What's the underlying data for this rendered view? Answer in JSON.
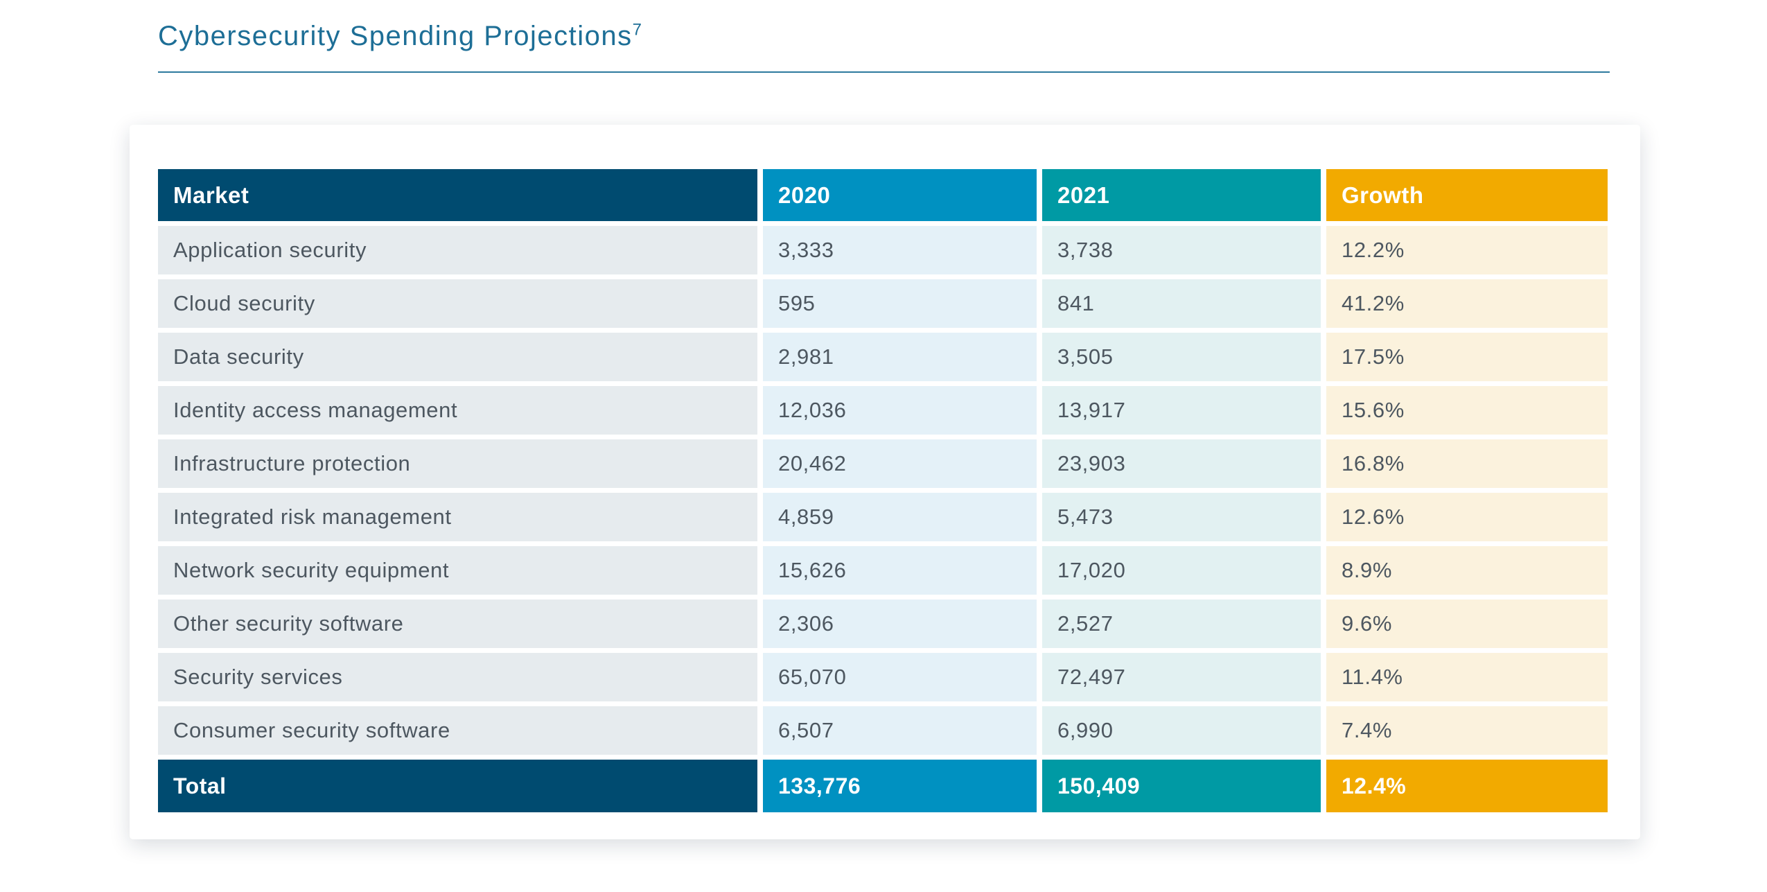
{
  "title": {
    "text": "Cybersecurity Spending Projections",
    "footnote_marker": "7"
  },
  "colors": {
    "title_text": "#1d6e96",
    "title_rule": "#2d7a9e",
    "header_market": "#004b70",
    "header_2020": "#0091c1",
    "header_2021": "#009aa4",
    "header_growth": "#f2aa00",
    "cell_market": "#e6ebee",
    "cell_2020": "#e4f1f8",
    "cell_2021": "#e2f1f2",
    "cell_growth": "#fbf2dd",
    "body_text": "#4d5760"
  },
  "table": {
    "columns": [
      {
        "label": "Market"
      },
      {
        "label": "2020"
      },
      {
        "label": "2021"
      },
      {
        "label": "Growth"
      }
    ],
    "rows": [
      {
        "market": "Application security",
        "y2020": "3,333",
        "y2021": "3,738",
        "growth": "12.2%"
      },
      {
        "market": "Cloud security",
        "y2020": "595",
        "y2021": "841",
        "growth": "41.2%"
      },
      {
        "market": "Data security",
        "y2020": "2,981",
        "y2021": "3,505",
        "growth": "17.5%"
      },
      {
        "market": "Identity access management",
        "y2020": "12,036",
        "y2021": "13,917",
        "growth": "15.6%"
      },
      {
        "market": "Infrastructure protection",
        "y2020": "20,462",
        "y2021": "23,903",
        "growth": "16.8%"
      },
      {
        "market": "Integrated risk management",
        "y2020": "4,859",
        "y2021": "5,473",
        "growth": "12.6%"
      },
      {
        "market": "Network security equipment",
        "y2020": "15,626",
        "y2021": "17,020",
        "growth": "8.9%"
      },
      {
        "market": "Other security software",
        "y2020": "2,306",
        "y2021": "2,527",
        "growth": "9.6%"
      },
      {
        "market": "Security services",
        "y2020": "65,070",
        "y2021": "72,497",
        "growth": "11.4%"
      },
      {
        "market": "Consumer security software",
        "y2020": "6,507",
        "y2021": "6,990",
        "growth": "7.4%"
      }
    ],
    "total": {
      "label": "Total",
      "y2020": "133,776",
      "y2021": "150,409",
      "growth": "12.4%"
    }
  }
}
